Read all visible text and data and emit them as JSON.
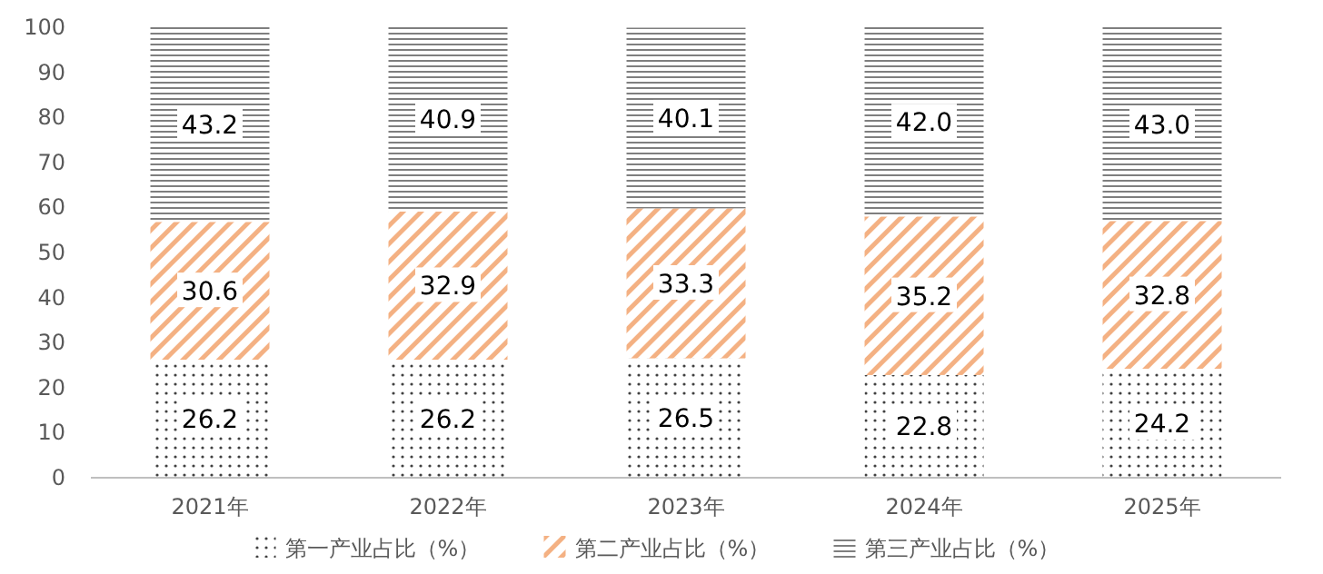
{
  "chart_data": {
    "type": "bar",
    "stacked": true,
    "categories": [
      "2021年",
      "2022年",
      "2023年",
      "2024年",
      "2025年"
    ],
    "series": [
      {
        "name": "第一产业占比（%）",
        "color": "#404040",
        "values": [
          26.2,
          26.2,
          26.5,
          22.8,
          24.2
        ],
        "value_labels": [
          "26.2",
          "26.2",
          "26.5",
          "22.8",
          "24.2"
        ]
      },
      {
        "name": "第二产业占比（%）",
        "color": "#f4b183",
        "values": [
          30.6,
          32.9,
          33.3,
          35.2,
          32.8
        ],
        "value_labels": [
          "30.6",
          "32.9",
          "33.3",
          "35.2",
          "32.8"
        ]
      },
      {
        "name": "第三产业占比（%）",
        "color": "#7f7f7f",
        "values": [
          43.2,
          40.9,
          40.1,
          42.0,
          43.0
        ],
        "value_labels": [
          "43.2",
          "40.9",
          "40.1",
          "42.0",
          "43.0"
        ]
      }
    ],
    "ylim": [
      0,
      100
    ],
    "yticks": [
      0,
      10,
      20,
      30,
      40,
      50,
      60,
      70,
      80,
      90,
      100
    ],
    "grid": false,
    "legend": "bottom"
  }
}
